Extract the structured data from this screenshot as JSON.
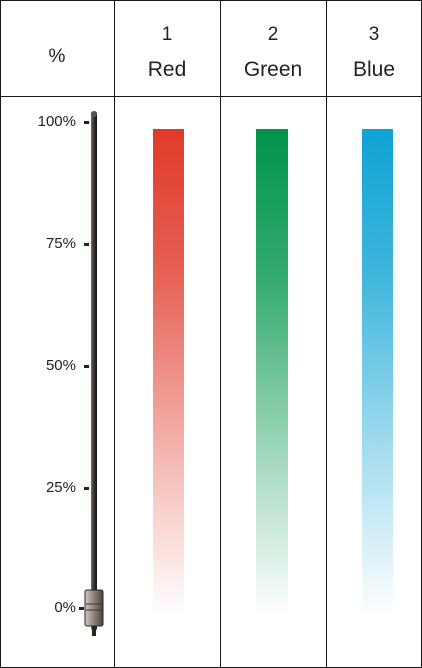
{
  "percent_header": "%",
  "channels": [
    {
      "number": "1",
      "name": "Red",
      "color": "#e03a2a"
    },
    {
      "number": "2",
      "name": "Green",
      "color": "#00944a"
    },
    {
      "number": "3",
      "name": "Blue",
      "color": "#0fa3d4"
    }
  ],
  "scale_ticks": [
    "100%",
    "75%",
    "50%",
    "25%",
    "0%"
  ],
  "slider_level": 0
}
